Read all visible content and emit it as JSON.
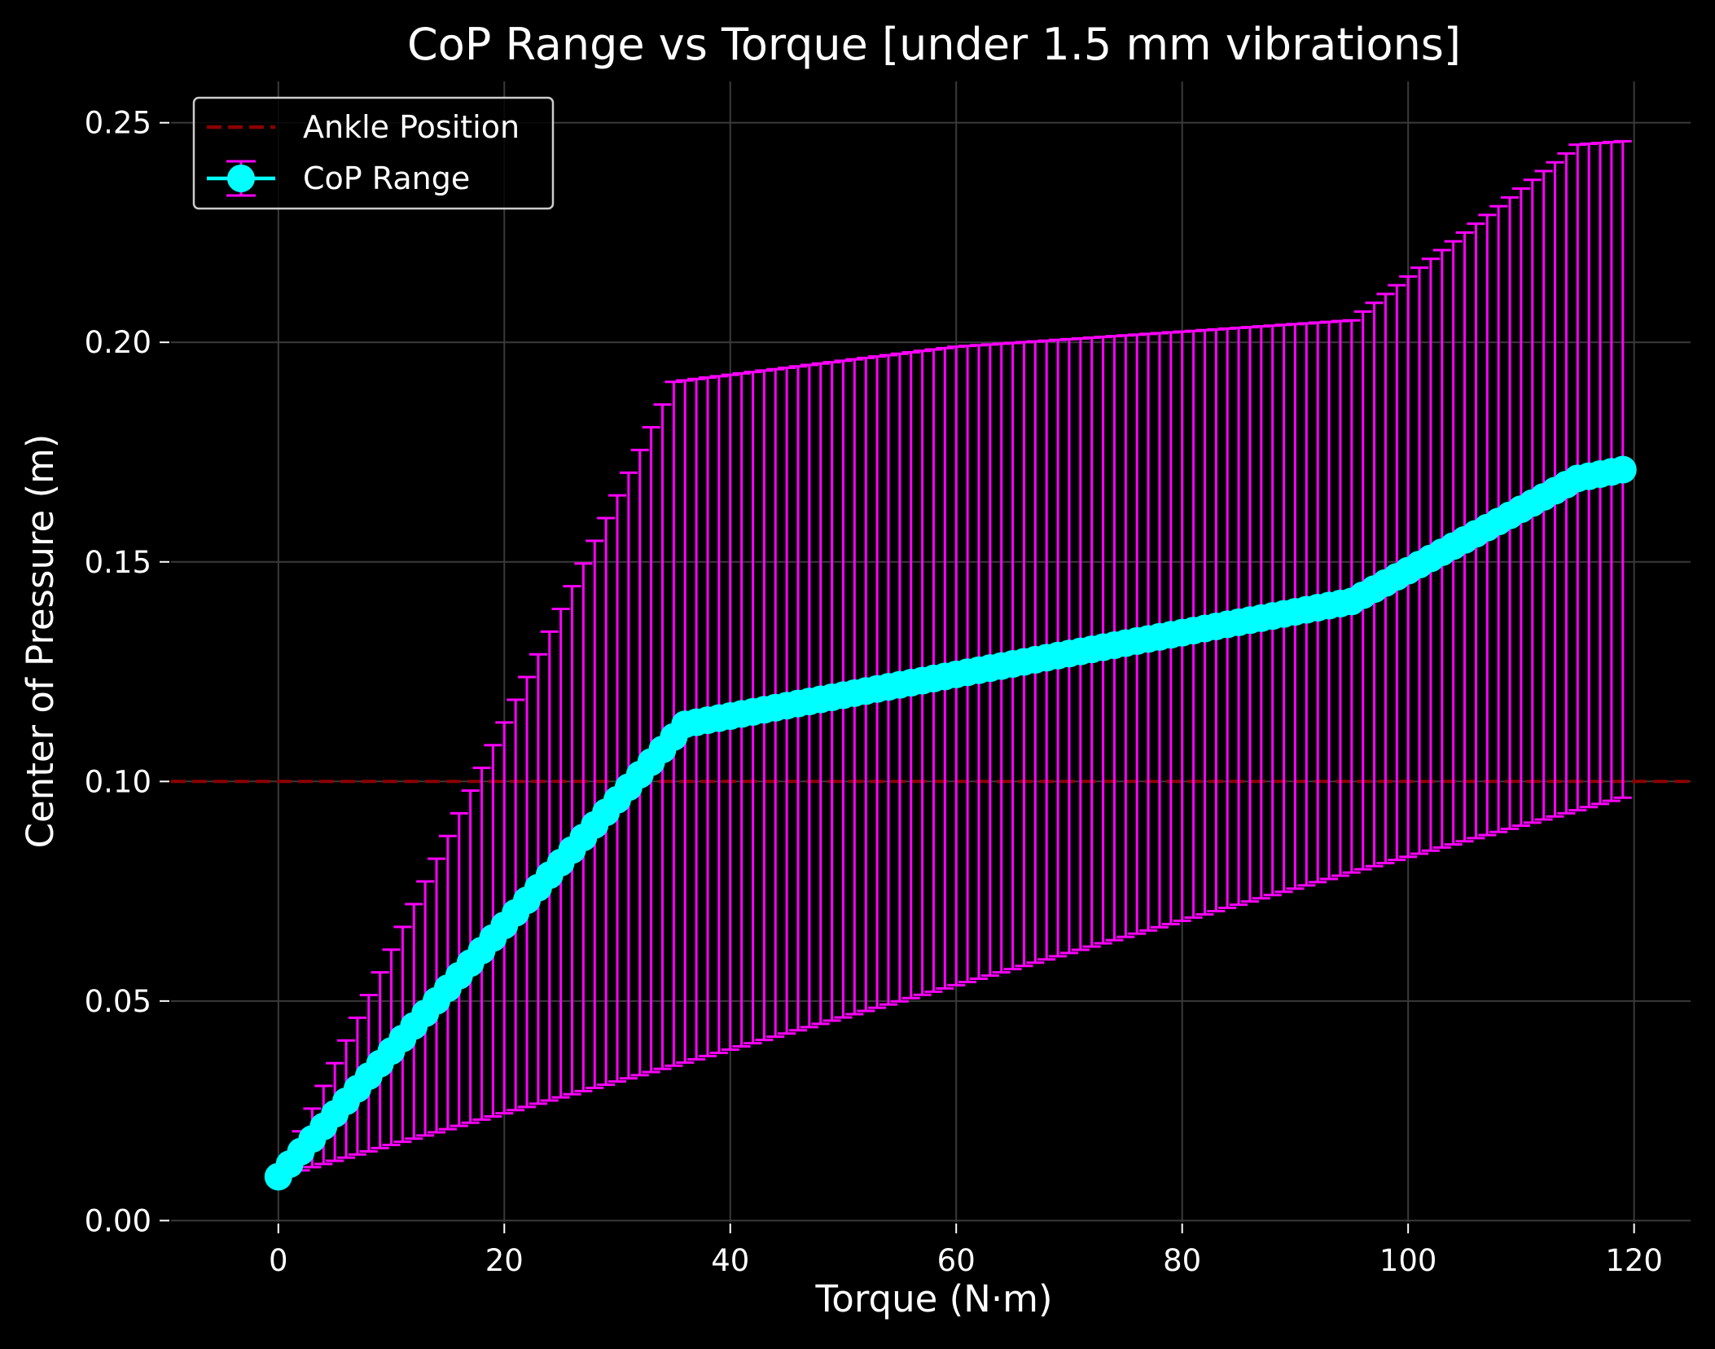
{
  "chart_data": {
    "type": "line",
    "title": "CoP Range vs Torque [under 1.5 mm vibrations]",
    "xlabel": "Torque (N·m)",
    "ylabel": "Center of Pressure (m)",
    "xlim": [
      -9.5,
      125.0
    ],
    "ylim": [
      -0.0003,
      0.2594
    ],
    "xticks": [
      0,
      20,
      40,
      60,
      80,
      100,
      120
    ],
    "xtick_labels": [
      "0",
      "20",
      "40",
      "60",
      "80",
      "100",
      "120"
    ],
    "yticks": [
      0.0,
      0.05,
      0.1,
      0.15,
      0.2,
      0.25
    ],
    "ytick_labels": [
      "0.00",
      "0.05",
      "0.10",
      "0.15",
      "0.20",
      "0.25"
    ],
    "grid": true,
    "legend": {
      "placement": "upper-left",
      "entries": [
        {
          "label": "Ankle Position",
          "style": "dashed-line",
          "color": "#8b0000"
        },
        {
          "label": "CoP Range",
          "style": "errorbar-marker",
          "color": "#00ffff",
          "errcolor": "#ff00ff"
        }
      ]
    },
    "hline": {
      "name": "Ankle Position",
      "y": 0.1,
      "color": "#8b0000"
    },
    "curve_knots": {
      "center": [
        [
          0,
          0.01
        ],
        [
          36,
          0.113
        ],
        [
          95,
          0.141
        ],
        [
          115,
          0.169
        ],
        [
          119,
          0.171
        ]
      ],
      "lower": [
        [
          0,
          0.01
        ],
        [
          36,
          0.036
        ],
        [
          96,
          0.08
        ],
        [
          120,
          0.097
        ]
      ],
      "upper": [
        [
          0,
          0.01
        ],
        [
          35,
          0.191
        ],
        [
          60,
          0.199
        ],
        [
          95,
          0.205
        ],
        [
          115,
          0.245
        ],
        [
          120,
          0.246
        ]
      ]
    },
    "series": [
      {
        "name": "CoP Range",
        "x_start": 0,
        "x_end": 119,
        "x_step": 1,
        "marker_color": "#00ffff",
        "errorbar_color": "#ff00ff"
      }
    ],
    "colors": {
      "background": "#000000",
      "grid": "#3a3a3a",
      "text": "#ffffff",
      "spine": "#000000"
    }
  }
}
